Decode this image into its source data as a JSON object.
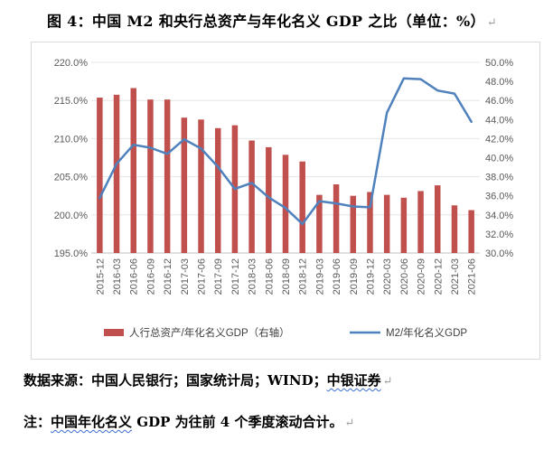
{
  "title": "图 4：中国 M2 和央行总资产与年化名义 GDP 之比（单位：%）",
  "return_mark": "↵",
  "source": {
    "prefix": "数据来源：中国人民银行；国家统计局；WIND；",
    "underlined": "中银证券"
  },
  "note": {
    "prefix": "注：",
    "underlined": "中国年化名义",
    "suffix": " GDP 为往前 4 个季度滚动合计。"
  },
  "chart_data": {
    "type": "bar+line",
    "categories": [
      "2015-12",
      "2016-03",
      "2016-06",
      "2016-09",
      "2016-12",
      "2017-03",
      "2017-06",
      "2017-09",
      "2017-12",
      "2018-03",
      "2018-06",
      "2018-09",
      "2018-12",
      "2019-03",
      "2019-06",
      "2019-09",
      "2019-12",
      "2020-03",
      "2020-06",
      "2020-09",
      "2020-12",
      "2021-03",
      "2021-06"
    ],
    "series": [
      {
        "name": "人行总资产/年化名义GDP（右轴）",
        "type": "bar",
        "axis": "right",
        "color": "#c0504d",
        "values": [
          46.3,
          46.6,
          47.3,
          46.1,
          46.1,
          44.2,
          44.0,
          43.1,
          43.4,
          41.8,
          41.1,
          40.3,
          39.6,
          36.1,
          37.2,
          36.0,
          36.4,
          36.1,
          35.8,
          36.5,
          37.1,
          35.0,
          34.5
        ]
      },
      {
        "name": "M2/年化名义GDP",
        "type": "line",
        "axis": "left",
        "color": "#4f81bd",
        "values": [
          202.2,
          206.7,
          209.2,
          208.8,
          208.0,
          209.9,
          208.7,
          206.3,
          203.4,
          204.2,
          202.3,
          200.9,
          198.8,
          201.8,
          201.5,
          201.1,
          201.0,
          213.4,
          217.9,
          217.8,
          216.3,
          215.9,
          212.2
        ]
      }
    ],
    "y_left": {
      "min": 195,
      "max": 220,
      "step": 5,
      "ticks": [
        "195.0%",
        "200.0%",
        "205.0%",
        "210.0%",
        "215.0%",
        "220.0%"
      ]
    },
    "y_right": {
      "min": 30,
      "max": 50,
      "step": 2,
      "ticks": [
        "30.0%",
        "32.0%",
        "34.0%",
        "36.0%",
        "38.0%",
        "40.0%",
        "42.0%",
        "44.0%",
        "46.0%",
        "48.0%",
        "50.0%"
      ]
    },
    "legend_position": "bottom"
  }
}
